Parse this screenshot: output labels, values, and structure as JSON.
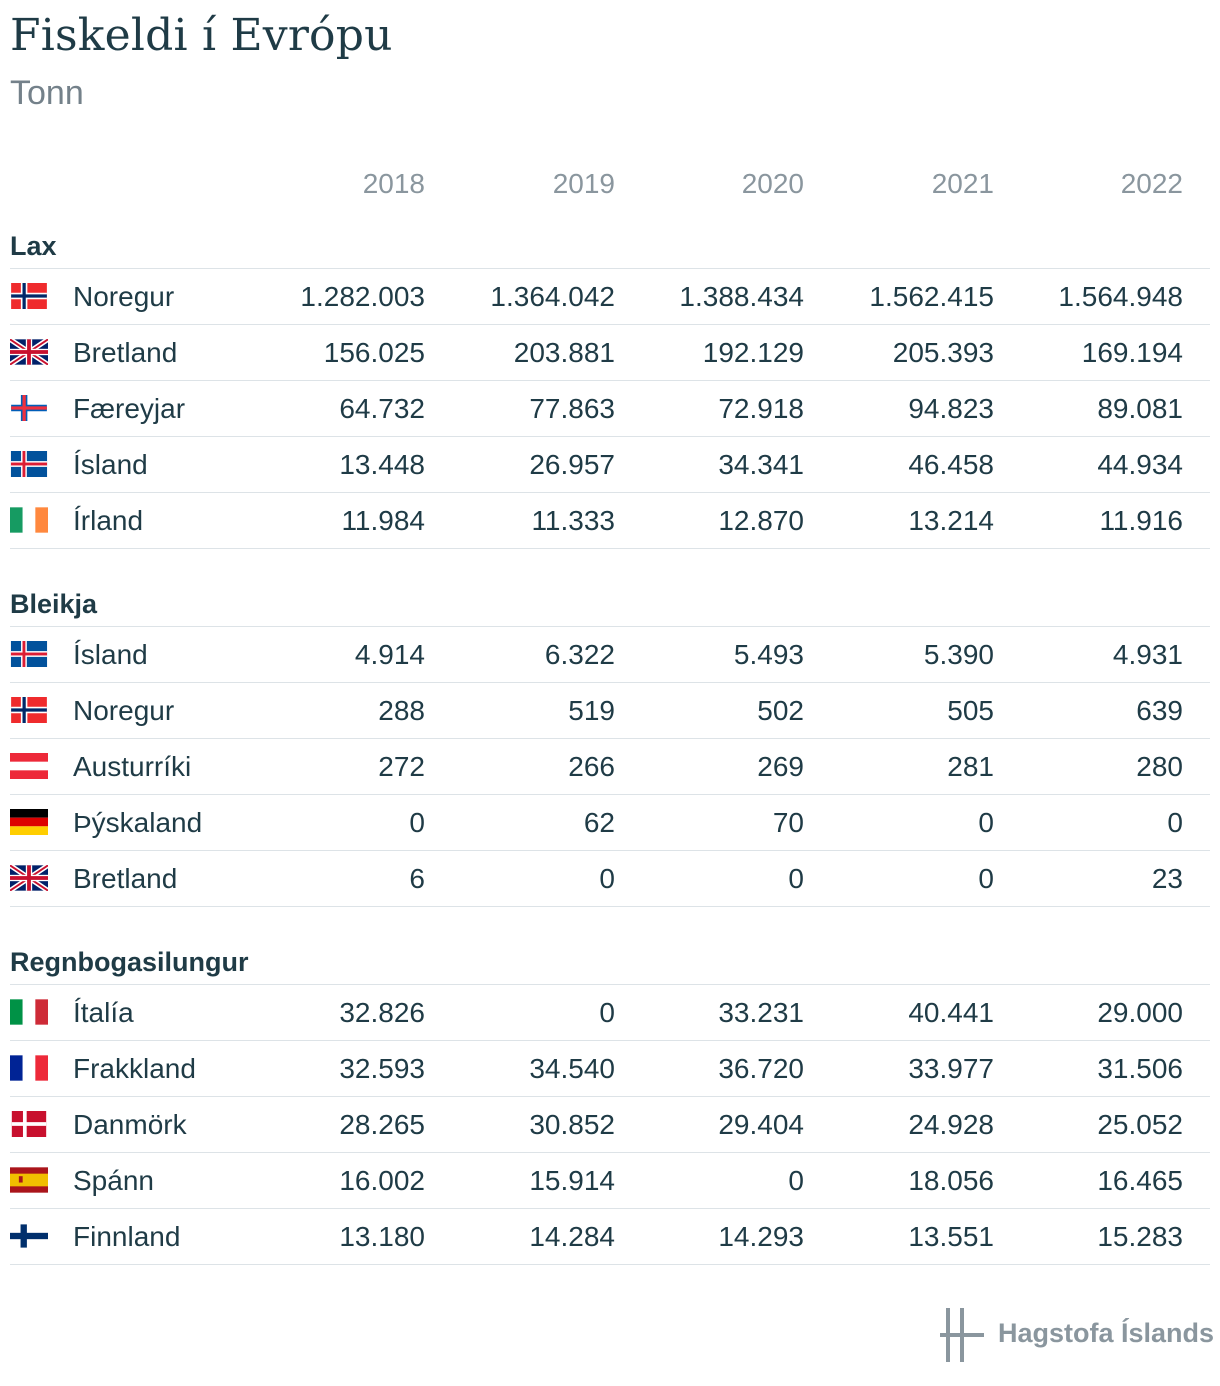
{
  "title": "Fiskeldi í Evrópu",
  "subtitle": "Tonn",
  "years": [
    "2018",
    "2019",
    "2020",
    "2021",
    "2022"
  ],
  "source_logo": "Hagstofa Íslands",
  "chart_data": {
    "type": "table",
    "title": "Fiskeldi í Evrópu",
    "subtitle": "Tonn",
    "columns": [
      "2018",
      "2019",
      "2020",
      "2021",
      "2022"
    ],
    "sections": [
      {
        "name": "Lax",
        "rows": [
          {
            "country": "Noregur",
            "flag": "norway-flag-icon",
            "values": [
              "1.282.003",
              "1.364.042",
              "1.388.434",
              "1.562.415",
              "1.564.948"
            ]
          },
          {
            "country": "Bretland",
            "flag": "uk-flag-icon",
            "values": [
              "156.025",
              "203.881",
              "192.129",
              "205.393",
              "169.194"
            ]
          },
          {
            "country": "Færeyjar",
            "flag": "faroe-flag-icon",
            "values": [
              "64.732",
              "77.863",
              "72.918",
              "94.823",
              "89.081"
            ]
          },
          {
            "country": "Ísland",
            "flag": "iceland-flag-icon",
            "values": [
              "13.448",
              "26.957",
              "34.341",
              "46.458",
              "44.934"
            ]
          },
          {
            "country": "Írland",
            "flag": "ireland-flag-icon",
            "values": [
              "11.984",
              "11.333",
              "12.870",
              "13.214",
              "11.916"
            ]
          }
        ]
      },
      {
        "name": "Bleikja",
        "rows": [
          {
            "country": "Ísland",
            "flag": "iceland-flag-icon",
            "values": [
              "4.914",
              "6.322",
              "5.493",
              "5.390",
              "4.931"
            ]
          },
          {
            "country": "Noregur",
            "flag": "norway-flag-icon",
            "values": [
              "288",
              "519",
              "502",
              "505",
              "639"
            ]
          },
          {
            "country": "Austurríki",
            "flag": "austria-flag-icon",
            "values": [
              "272",
              "266",
              "269",
              "281",
              "280"
            ]
          },
          {
            "country": "Þýskaland",
            "flag": "germany-flag-icon",
            "values": [
              "0",
              "62",
              "70",
              "0",
              "0"
            ]
          },
          {
            "country": "Bretland",
            "flag": "uk-flag-icon",
            "values": [
              "6",
              "0",
              "0",
              "0",
              "23"
            ]
          }
        ]
      },
      {
        "name": "Regnbogasilungur",
        "rows": [
          {
            "country": "Ítalía",
            "flag": "italy-flag-icon",
            "values": [
              "32.826",
              "0",
              "33.231",
              "40.441",
              "29.000"
            ]
          },
          {
            "country": "Frakkland",
            "flag": "france-flag-icon",
            "values": [
              "32.593",
              "34.540",
              "36.720",
              "33.977",
              "31.506"
            ]
          },
          {
            "country": "Danmörk",
            "flag": "denmark-flag-icon",
            "values": [
              "28.265",
              "30.852",
              "29.404",
              "24.928",
              "25.052"
            ]
          },
          {
            "country": "Spánn",
            "flag": "spain-flag-icon",
            "values": [
              "16.002",
              "15.914",
              "0",
              "18.056",
              "16.465"
            ]
          },
          {
            "country": "Finnland",
            "flag": "finland-flag-icon",
            "values": [
              "13.180",
              "14.284",
              "14.293",
              "13.551",
              "15.283"
            ]
          }
        ]
      }
    ]
  }
}
